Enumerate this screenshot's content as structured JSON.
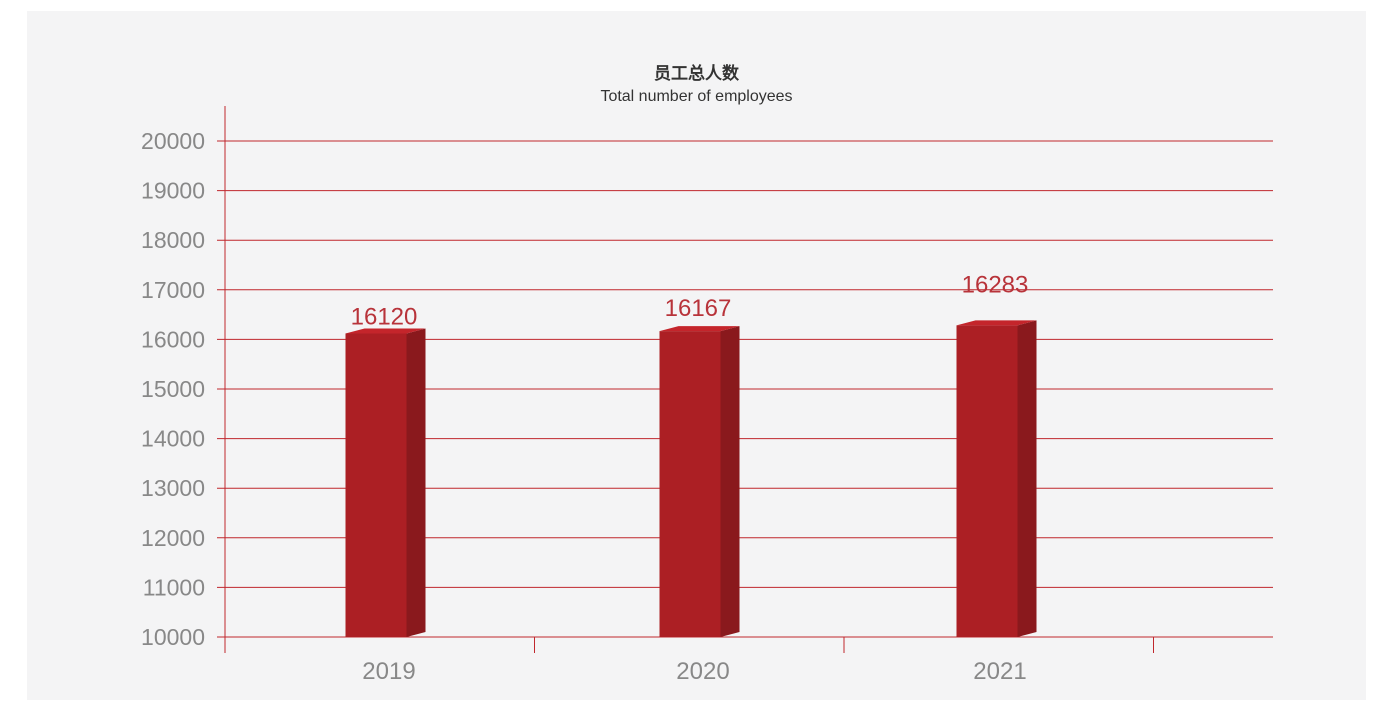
{
  "chart_data": {
    "type": "bar",
    "title": "员工总人数",
    "subtitle": "Total number of employees",
    "xlabel": "",
    "ylabel": "",
    "categories": [
      "2019",
      "2020",
      "2021"
    ],
    "values": [
      16120,
      16167,
      16283
    ],
    "value_labels": [
      "16120",
      "16167",
      "16283"
    ],
    "ylim": [
      10000,
      20000
    ],
    "yticks": [
      "10000",
      "11000",
      "12000",
      "13000",
      "14000",
      "15000",
      "16000",
      "17000",
      "18000",
      "19000",
      "20000"
    ],
    "grid": true,
    "legend": "none",
    "colors": {
      "bar_front": "#ac1f24",
      "bar_side": "#8a191d",
      "bar_top": "#c4252b",
      "grid": "#c0272d",
      "label": "#b8333a",
      "tick": "#888888"
    }
  }
}
